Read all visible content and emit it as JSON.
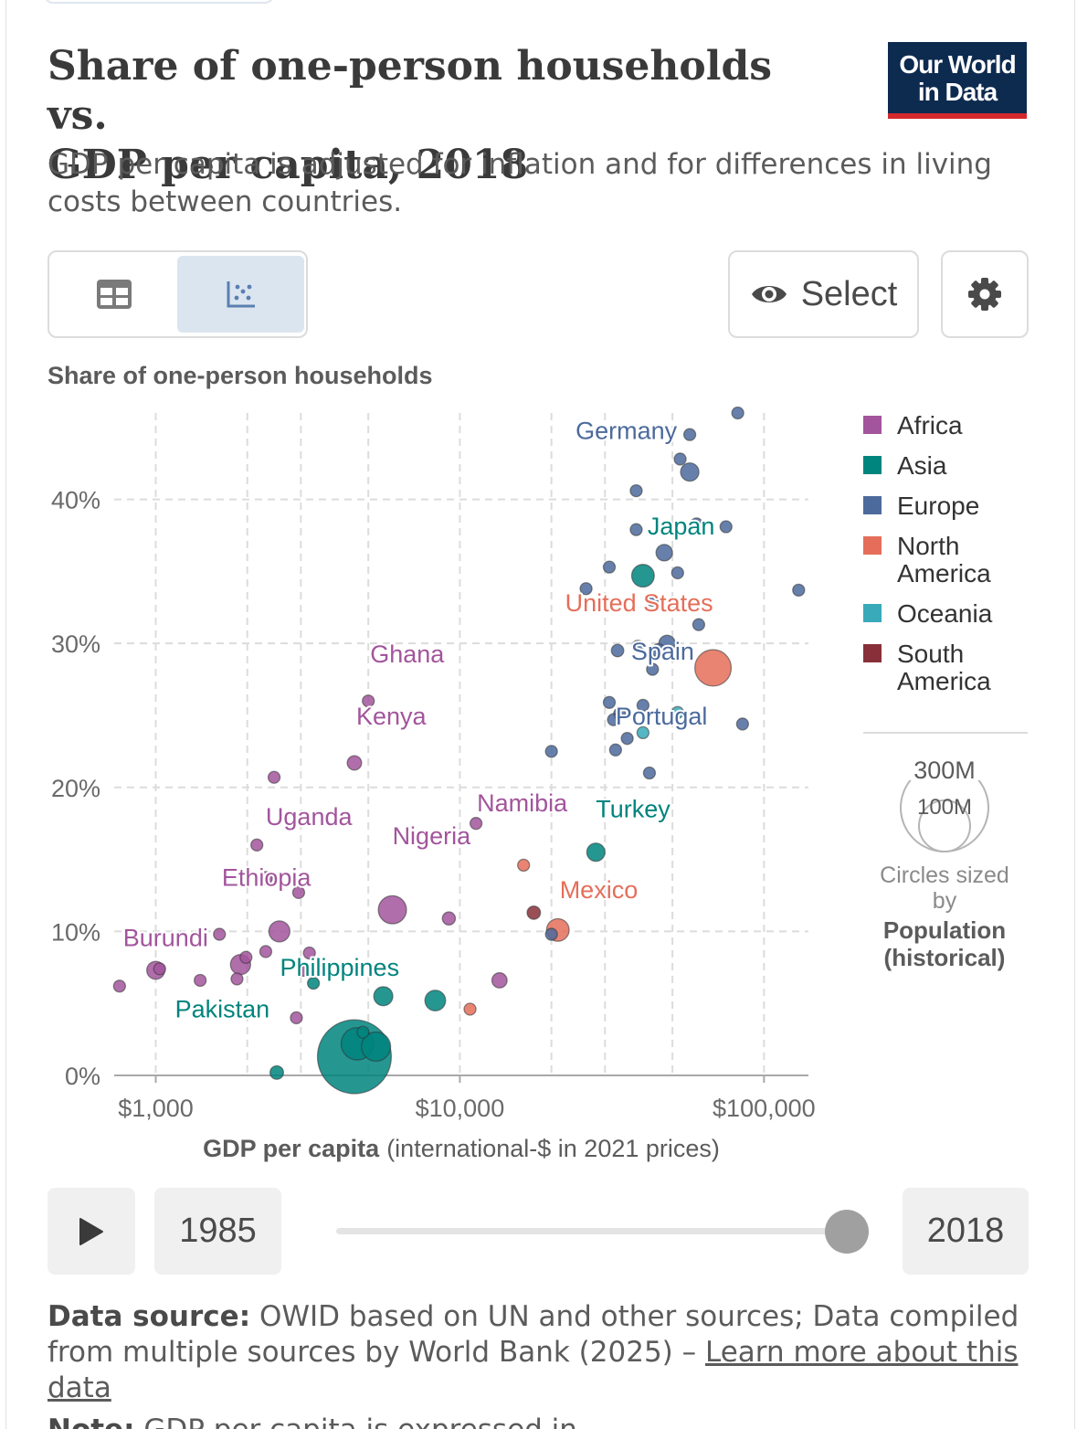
{
  "header": {
    "title_line1": "Share of one-person households vs.",
    "title_line2": "GDP per capita, 2018",
    "subtitle": "GDP per capita is adjusted for inflation and for differences in living costs between countries.",
    "logo_line1": "Our World",
    "logo_line2": "in Data"
  },
  "controls": {
    "table_icon": "table-icon",
    "chart_icon": "scatter-chart-icon",
    "select_label": "Select",
    "select_icon": "eye-icon",
    "settings_icon": "gear-icon"
  },
  "timeline": {
    "start_year": "1985",
    "end_year": "2018",
    "position": 1.0,
    "play_icon": "play-icon"
  },
  "footer": {
    "source_label": "Data source:",
    "source_text": "OWID based on UN and other sources; Data compiled from multiple sources by World Bank (2025) –",
    "learn_more": "Learn more about this data",
    "note_label": "Note:",
    "note_text": "GDP per capita is expressed in"
  },
  "chart_data": {
    "type": "scatter",
    "title": "Share of one-person households vs. GDP per capita, 2018",
    "ylabel": "Share of one-person households",
    "xlabel_bold": "GDP per capita",
    "xlabel_rest": "(international-$ in 2021 prices)",
    "x_scale": "log",
    "xlim": [
      730,
      140000
    ],
    "ylim": [
      0,
      46
    ],
    "x_ticks": [
      1000,
      10000,
      100000
    ],
    "x_tick_labels": [
      "$1,000",
      "$10,000",
      "$100,000"
    ],
    "x_grid": [
      1000,
      2000,
      3000,
      5000,
      10000,
      20000,
      30000,
      50000,
      100000
    ],
    "y_ticks": [
      0,
      10,
      20,
      30,
      40
    ],
    "y_tick_labels": [
      "0%",
      "10%",
      "20%",
      "30%",
      "40%"
    ],
    "grid": true,
    "legend_position": "right",
    "size_legend": {
      "big_label": "300M",
      "small_label": "100M",
      "caption_line1": "Circles sized",
      "caption_line2": "by",
      "caption_bold1": "Population",
      "caption_bold2": "(historical)"
    },
    "region_colors": {
      "Africa": "#a2559c",
      "Asia": "#00847e",
      "Europe": "#4c6a9c",
      "North America": "#e56e5a",
      "Oceania": "#38aaba",
      "South America": "#883039"
    },
    "regions": [
      {
        "key": "Africa",
        "lines": [
          "Africa"
        ]
      },
      {
        "key": "Asia",
        "lines": [
          "Asia"
        ]
      },
      {
        "key": "Europe",
        "lines": [
          "Europe"
        ]
      },
      {
        "key": "North America",
        "lines": [
          "North",
          "America"
        ]
      },
      {
        "key": "Oceania",
        "lines": [
          "Oceania"
        ]
      },
      {
        "key": "South America",
        "lines": [
          "South",
          "America"
        ]
      }
    ],
    "points": [
      {
        "x": 28000,
        "y": 15.5,
        "pop": 82,
        "region": "Asia",
        "label": "Turkey"
      },
      {
        "x": 40000,
        "y": 34.7,
        "pop": 127,
        "region": "Asia",
        "label": "Japan"
      },
      {
        "x": 8300,
        "y": 5.2,
        "pop": 106,
        "region": "Asia",
        "label": "Philippines"
      },
      {
        "x": 5300,
        "y": 2.0,
        "pop": 210,
        "region": "Asia",
        "label": "Pakistan"
      },
      {
        "x": 4500,
        "y": 1.3,
        "pop": 1350,
        "region": "Asia"
      },
      {
        "x": 2500,
        "y": 0.2,
        "pop": 45,
        "region": "Asia"
      },
      {
        "x": 3300,
        "y": 6.4,
        "pop": 30,
        "region": "Asia"
      },
      {
        "x": 5600,
        "y": 5.5,
        "pop": 90,
        "region": "Asia"
      },
      {
        "x": 4800,
        "y": 3.0,
        "pop": 20,
        "region": "Asia"
      },
      {
        "x": 4600,
        "y": 2.2,
        "pop": 260,
        "region": "Asia"
      },
      {
        "x": 6000,
        "y": 11.5,
        "pop": 196,
        "region": "Africa",
        "label": "Nigeria"
      },
      {
        "x": 13500,
        "y": 6.6,
        "pop": 57,
        "region": "Africa"
      },
      {
        "x": 5000,
        "y": 26.0,
        "pop": 30,
        "region": "Africa",
        "label": "Ghana"
      },
      {
        "x": 4500,
        "y": 21.7,
        "pop": 51,
        "region": "Africa",
        "label": "Kenya"
      },
      {
        "x": 11300,
        "y": 17.5,
        "pop": 2.5,
        "region": "Africa",
        "label": "Namibia"
      },
      {
        "x": 2300,
        "y": 13.7,
        "pop": 43,
        "region": "Africa",
        "label": "Uganda"
      },
      {
        "x": 2550,
        "y": 10.0,
        "pop": 109,
        "region": "Africa",
        "label": "Ethiopia"
      },
      {
        "x": 1030,
        "y": 7.4,
        "pop": 11,
        "region": "Africa",
        "label": "Burundi"
      },
      {
        "x": 1900,
        "y": 7.7,
        "pop": 100,
        "region": "Africa"
      },
      {
        "x": 1980,
        "y": 8.2,
        "pop": 12,
        "region": "Africa"
      },
      {
        "x": 1850,
        "y": 6.7,
        "pop": 25,
        "region": "Africa"
      },
      {
        "x": 1400,
        "y": 6.6,
        "pop": 26,
        "region": "Africa"
      },
      {
        "x": 1000,
        "y": 7.3,
        "pop": 80,
        "region": "Africa"
      },
      {
        "x": 760,
        "y": 6.2,
        "pop": 17,
        "region": "Africa"
      },
      {
        "x": 2150,
        "y": 16.0,
        "pop": 12,
        "region": "Africa"
      },
      {
        "x": 2450,
        "y": 20.7,
        "pop": 8,
        "region": "Africa"
      },
      {
        "x": 2950,
        "y": 12.7,
        "pop": 25,
        "region": "Africa"
      },
      {
        "x": 3200,
        "y": 8.5,
        "pop": 30,
        "region": "Africa"
      },
      {
        "x": 3050,
        "y": 7.3,
        "pop": 28,
        "region": "Africa"
      },
      {
        "x": 2900,
        "y": 4.0,
        "pop": 12,
        "region": "Africa"
      },
      {
        "x": 1620,
        "y": 9.8,
        "pop": 10,
        "region": "Africa"
      },
      {
        "x": 2300,
        "y": 8.6,
        "pop": 10,
        "region": "Africa"
      },
      {
        "x": 9200,
        "y": 10.9,
        "pop": 42,
        "region": "Africa"
      },
      {
        "x": 21000,
        "y": 10.1,
        "pop": 126,
        "region": "North America",
        "label": "Mexico"
      },
      {
        "x": 68000,
        "y": 28.3,
        "pop": 327,
        "region": "North America",
        "label": "United States"
      },
      {
        "x": 16200,
        "y": 14.6,
        "pop": 18,
        "region": "North America"
      },
      {
        "x": 10800,
        "y": 4.6,
        "pop": 30,
        "region": "North America"
      },
      {
        "x": 17500,
        "y": 11.3,
        "pop": 44,
        "region": "South America"
      },
      {
        "x": 57000,
        "y": 41.9,
        "pop": 83,
        "region": "Europe",
        "label": "Germany"
      },
      {
        "x": 45000,
        "y": 29.5,
        "pop": 47,
        "region": "Europe",
        "label": "Spain"
      },
      {
        "x": 40000,
        "y": 25.7,
        "pop": 10,
        "region": "Europe",
        "label": "Portugal"
      },
      {
        "x": 82000,
        "y": 46.0,
        "pop": 5,
        "region": "Europe"
      },
      {
        "x": 57000,
        "y": 44.5,
        "pop": 8,
        "region": "Europe"
      },
      {
        "x": 53000,
        "y": 42.8,
        "pop": 10,
        "region": "Europe"
      },
      {
        "x": 38000,
        "y": 40.6,
        "pop": 5,
        "region": "Europe"
      },
      {
        "x": 60000,
        "y": 38.3,
        "pop": 17,
        "region": "Europe"
      },
      {
        "x": 75000,
        "y": 38.1,
        "pop": 9,
        "region": "Europe"
      },
      {
        "x": 38000,
        "y": 37.9,
        "pop": 5,
        "region": "Europe"
      },
      {
        "x": 47000,
        "y": 36.3,
        "pop": 67,
        "region": "Europe"
      },
      {
        "x": 52000,
        "y": 34.9,
        "pop": 11,
        "region": "Europe"
      },
      {
        "x": 31000,
        "y": 35.3,
        "pop": 5,
        "region": "Europe"
      },
      {
        "x": 26000,
        "y": 33.8,
        "pop": 5,
        "region": "Europe"
      },
      {
        "x": 43000,
        "y": 33.0,
        "pop": 8,
        "region": "Europe"
      },
      {
        "x": 130000,
        "y": 33.7,
        "pop": 5,
        "region": "Europe"
      },
      {
        "x": 48000,
        "y": 30.0,
        "pop": 66,
        "region": "Europe"
      },
      {
        "x": 33000,
        "y": 29.5,
        "pop": 38,
        "region": "Europe"
      },
      {
        "x": 43000,
        "y": 28.2,
        "pop": 8,
        "region": "Europe"
      },
      {
        "x": 38500,
        "y": 29.8,
        "pop": 5,
        "region": "Europe"
      },
      {
        "x": 31000,
        "y": 25.9,
        "pop": 10,
        "region": "Europe"
      },
      {
        "x": 33500,
        "y": 25.1,
        "pop": 30,
        "region": "Europe"
      },
      {
        "x": 32000,
        "y": 24.7,
        "pop": 5,
        "region": "Europe"
      },
      {
        "x": 35500,
        "y": 23.4,
        "pop": 10,
        "region": "Europe"
      },
      {
        "x": 32500,
        "y": 22.6,
        "pop": 5,
        "region": "Europe"
      },
      {
        "x": 20000,
        "y": 22.5,
        "pop": 7,
        "region": "Europe"
      },
      {
        "x": 85000,
        "y": 24.4,
        "pop": 5,
        "region": "Europe"
      },
      {
        "x": 42000,
        "y": 21.0,
        "pop": 4,
        "region": "Europe"
      },
      {
        "x": 20000,
        "y": 9.8,
        "pop": 4,
        "region": "Europe"
      },
      {
        "x": 61000,
        "y": 31.3,
        "pop": 5,
        "region": "Europe"
      },
      {
        "x": 52000,
        "y": 25.2,
        "pop": 25,
        "region": "Oceania"
      },
      {
        "x": 40000,
        "y": 23.8,
        "pop": 5,
        "region": "Oceania"
      }
    ],
    "label_offsets": {
      "Germany": [
        -125,
        -36
      ],
      "Japan": [
        5,
        -45
      ],
      "United States": [
        -162,
        -62
      ],
      "Spain": [
        -30,
        10
      ],
      "Portugal": [
        -30,
        21
      ],
      "Turkey": [
        0,
        -38
      ],
      "Mexico": [
        2,
        -35
      ],
      "Philippines": [
        -170,
        -27
      ],
      "Pakistan": [
        -220,
        -32
      ],
      "Ghana": [
        2,
        -42
      ],
      "Kenya": [
        2,
        -42
      ],
      "Namibia": [
        1,
        -13
      ],
      "Uganda": [
        0,
        -58
      ],
      "Ethiopia": [
        -63,
        -50
      ],
      "Burundi": [
        -40,
        -25
      ],
      "Nigeria": [
        0,
        -72
      ]
    }
  }
}
